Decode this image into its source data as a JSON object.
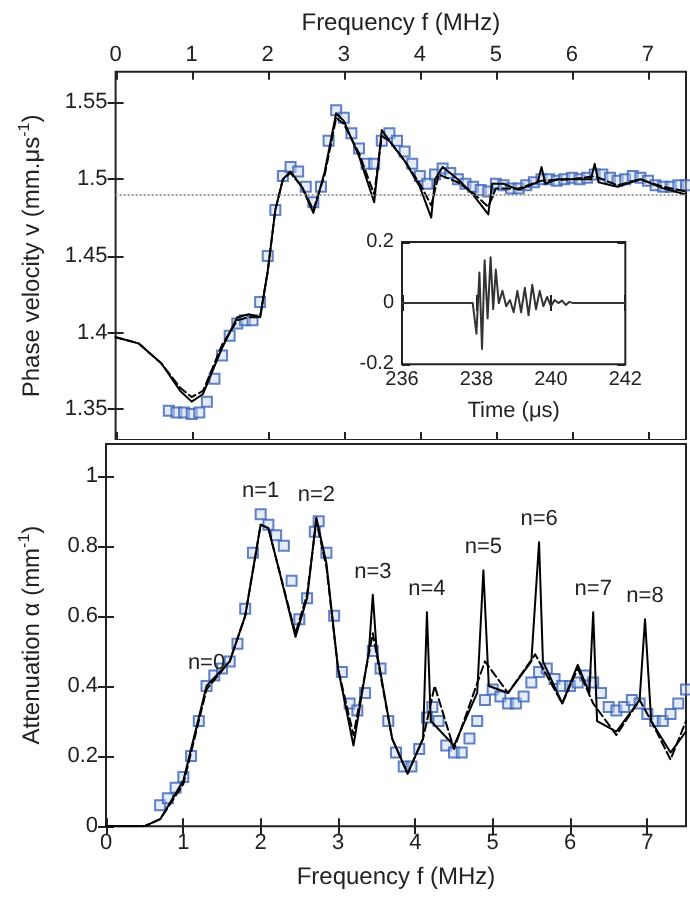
{
  "chart_data": [
    {
      "type": "line",
      "xlabel": "Frequency f (MHz)",
      "ylabel": "Phase velocity v (mm.μs$^{-1}$)",
      "xlim": [
        0,
        7.5
      ],
      "xticks": [
        0,
        1,
        2,
        3,
        4,
        5,
        6,
        7
      ],
      "ylim": [
        1.33,
        1.57
      ],
      "yticks": [
        1.35,
        1.4,
        1.45,
        1.5,
        1.55
      ],
      "grid": false,
      "ref_lines": [
        {
          "axis": "y",
          "value": 1.49,
          "color": "#999999",
          "line_style": "dotted"
        }
      ],
      "series": [
        {
          "color": "#000000",
          "line_style": "solid",
          "marker": "none",
          "x": [
            0,
            0.3,
            0.6,
            0.85,
            1.0,
            1.15,
            1.4,
            1.6,
            1.75,
            1.9,
            2.0,
            2.1,
            2.2,
            2.3,
            2.45,
            2.6,
            2.75,
            2.9,
            3.0,
            3.2,
            3.4,
            3.5,
            3.6,
            3.8,
            4.0,
            4.15,
            4.2,
            4.3,
            4.5,
            4.7,
            4.9,
            4.95,
            5.1,
            5.3,
            5.55,
            5.6,
            5.65,
            5.8,
            6.0,
            6.25,
            6.3,
            6.35,
            6.6,
            6.9,
            7.2,
            7.5
          ],
          "values": [
            1.397,
            1.393,
            1.38,
            1.362,
            1.355,
            1.36,
            1.39,
            1.41,
            1.412,
            1.41,
            1.44,
            1.48,
            1.5,
            1.505,
            1.495,
            1.478,
            1.505,
            1.543,
            1.538,
            1.515,
            1.485,
            1.532,
            1.525,
            1.512,
            1.495,
            1.475,
            1.5,
            1.508,
            1.5,
            1.49,
            1.477,
            1.497,
            1.497,
            1.493,
            1.498,
            1.508,
            1.497,
            1.5,
            1.5,
            1.5,
            1.51,
            1.498,
            1.495,
            1.5,
            1.494,
            1.49
          ]
        },
        {
          "color": "#000000",
          "line_style": "dashed",
          "marker": "none",
          "x": [
            0,
            0.3,
            0.6,
            0.85,
            1.0,
            1.15,
            1.4,
            1.6,
            1.75,
            1.9,
            2.0,
            2.1,
            2.2,
            2.3,
            2.45,
            2.6,
            2.75,
            2.9,
            3.0,
            3.2,
            3.4,
            3.5,
            3.6,
            3.8,
            4.0,
            4.15,
            4.25,
            4.5,
            4.7,
            4.9,
            5.0,
            5.3,
            5.6,
            6.0,
            6.3,
            6.6,
            6.9,
            7.2,
            7.5
          ],
          "values": [
            1.397,
            1.393,
            1.38,
            1.364,
            1.358,
            1.362,
            1.392,
            1.408,
            1.41,
            1.41,
            1.44,
            1.48,
            1.5,
            1.504,
            1.495,
            1.48,
            1.503,
            1.54,
            1.536,
            1.517,
            1.49,
            1.528,
            1.525,
            1.512,
            1.497,
            1.483,
            1.503,
            1.498,
            1.491,
            1.482,
            1.494,
            1.494,
            1.499,
            1.5,
            1.502,
            1.496,
            1.5,
            1.495,
            1.492
          ]
        },
        {
          "type": "scatter",
          "color": "#3a63b8",
          "marker": "square",
          "x": [
            0.7,
            0.8,
            0.9,
            1.0,
            1.1,
            1.2,
            1.3,
            1.4,
            1.5,
            1.6,
            1.7,
            1.8,
            1.9,
            2.0,
            2.1,
            2.2,
            2.3,
            2.4,
            2.5,
            2.6,
            2.7,
            2.8,
            2.9,
            3.0,
            3.1,
            3.2,
            3.3,
            3.4,
            3.5,
            3.6,
            3.7,
            3.8,
            3.9,
            4.0,
            4.1,
            4.2,
            4.3,
            4.4,
            4.5,
            4.6,
            4.7,
            4.8,
            4.9,
            5.0,
            5.1,
            5.2,
            5.3,
            5.4,
            5.5,
            5.6,
            5.7,
            5.8,
            5.9,
            6.0,
            6.1,
            6.2,
            6.3,
            6.4,
            6.5,
            6.6,
            6.7,
            6.8,
            6.9,
            7.0,
            7.1,
            7.2,
            7.3,
            7.4,
            7.5
          ],
          "values": [
            1.349,
            1.348,
            1.348,
            1.347,
            1.348,
            1.355,
            1.37,
            1.385,
            1.398,
            1.406,
            1.408,
            1.408,
            1.42,
            1.45,
            1.48,
            1.502,
            1.508,
            1.505,
            1.495,
            1.485,
            1.495,
            1.525,
            1.545,
            1.54,
            1.53,
            1.52,
            1.51,
            1.51,
            1.525,
            1.53,
            1.525,
            1.518,
            1.51,
            1.502,
            1.497,
            1.503,
            1.507,
            1.504,
            1.5,
            1.497,
            1.495,
            1.493,
            1.492,
            1.497,
            1.496,
            1.494,
            1.494,
            1.496,
            1.498,
            1.5,
            1.5,
            1.499,
            1.5,
            1.501,
            1.5,
            1.501,
            1.503,
            1.503,
            1.501,
            1.499,
            1.5,
            1.502,
            1.501,
            1.499,
            1.496,
            1.495,
            1.495,
            1.496,
            1.496
          ]
        }
      ]
    },
    {
      "type": "line",
      "xlabel": "Frequency f (MHz)",
      "ylabel": "Attenuation α (mm$^{-1}$)",
      "xlim": [
        0,
        7.5
      ],
      "xticks": [
        0,
        1,
        2,
        3,
        4,
        5,
        6,
        7
      ],
      "ylim": [
        0,
        1.09
      ],
      "yticks": [
        0,
        0.2,
        0.4,
        0.6,
        0.8,
        1
      ],
      "grid": false,
      "annotations": [
        {
          "text": "n=0",
          "x": 1.3,
          "y": 0.4
        },
        {
          "text": "n=1",
          "x": 2.0,
          "y": 0.89
        },
        {
          "text": "n=2",
          "x": 2.72,
          "y": 0.88
        },
        {
          "text": "n=3",
          "x": 3.45,
          "y": 0.66
        },
        {
          "text": "n=4",
          "x": 4.15,
          "y": 0.61
        },
        {
          "text": "n=5",
          "x": 4.88,
          "y": 0.73
        },
        {
          "text": "n=6",
          "x": 5.6,
          "y": 0.81
        },
        {
          "text": "n=7",
          "x": 6.3,
          "y": 0.61
        },
        {
          "text": "n=8",
          "x": 6.97,
          "y": 0.59
        }
      ],
      "series": [
        {
          "color": "#000000",
          "line_style": "solid",
          "marker": "none",
          "x": [
            0,
            0.5,
            0.7,
            1.0,
            1.3,
            1.6,
            1.8,
            2.0,
            2.1,
            2.25,
            2.45,
            2.6,
            2.72,
            2.85,
            3.0,
            3.2,
            3.4,
            3.45,
            3.5,
            3.7,
            3.9,
            4.1,
            4.15,
            4.2,
            4.5,
            4.8,
            4.88,
            4.95,
            5.2,
            5.5,
            5.6,
            5.65,
            5.9,
            6.1,
            6.25,
            6.3,
            6.35,
            6.6,
            6.9,
            6.97,
            7.05,
            7.3,
            7.5
          ],
          "values": [
            0,
            0,
            0.02,
            0.13,
            0.4,
            0.47,
            0.6,
            0.86,
            0.85,
            0.72,
            0.54,
            0.65,
            0.88,
            0.75,
            0.45,
            0.23,
            0.5,
            0.66,
            0.5,
            0.25,
            0.15,
            0.25,
            0.61,
            0.3,
            0.23,
            0.38,
            0.73,
            0.4,
            0.38,
            0.47,
            0.81,
            0.47,
            0.35,
            0.46,
            0.38,
            0.61,
            0.3,
            0.27,
            0.36,
            0.59,
            0.3,
            0.21,
            0.27
          ]
        },
        {
          "color": "#000000",
          "line_style": "dashed",
          "marker": "none",
          "x": [
            0,
            0.5,
            0.7,
            1.0,
            1.3,
            1.6,
            1.8,
            2.0,
            2.1,
            2.25,
            2.45,
            2.6,
            2.72,
            2.85,
            3.0,
            3.2,
            3.45,
            3.7,
            3.9,
            4.1,
            4.25,
            4.5,
            4.9,
            5.2,
            5.55,
            5.9,
            6.1,
            6.3,
            6.6,
            6.9,
            7.05,
            7.3,
            7.5
          ],
          "values": [
            0,
            0,
            0.02,
            0.12,
            0.39,
            0.47,
            0.6,
            0.86,
            0.85,
            0.72,
            0.55,
            0.66,
            0.87,
            0.74,
            0.45,
            0.26,
            0.55,
            0.25,
            0.15,
            0.25,
            0.4,
            0.22,
            0.47,
            0.38,
            0.49,
            0.35,
            0.45,
            0.35,
            0.26,
            0.36,
            0.3,
            0.19,
            0.3
          ]
        },
        {
          "type": "scatter",
          "color": "#3a63b8",
          "marker": "square",
          "x": [
            0.7,
            0.8,
            0.9,
            1.0,
            1.1,
            1.2,
            1.3,
            1.4,
            1.5,
            1.6,
            1.7,
            1.8,
            1.9,
            2.0,
            2.1,
            2.2,
            2.3,
            2.4,
            2.5,
            2.6,
            2.7,
            2.75,
            2.85,
            2.95,
            3.05,
            3.15,
            3.25,
            3.35,
            3.45,
            3.55,
            3.65,
            3.75,
            3.85,
            3.95,
            4.05,
            4.15,
            4.22,
            4.3,
            4.4,
            4.5,
            4.6,
            4.7,
            4.8,
            4.9,
            5.0,
            5.1,
            5.2,
            5.3,
            5.4,
            5.5,
            5.6,
            5.7,
            5.8,
            5.9,
            6.0,
            6.1,
            6.2,
            6.3,
            6.4,
            6.5,
            6.6,
            6.7,
            6.8,
            6.9,
            7.0,
            7.1,
            7.2,
            7.3,
            7.4,
            7.5
          ],
          "values": [
            0.06,
            0.08,
            0.11,
            0.14,
            0.2,
            0.3,
            0.4,
            0.43,
            0.45,
            0.47,
            0.52,
            0.62,
            0.78,
            0.89,
            0.86,
            0.83,
            0.8,
            0.7,
            0.59,
            0.65,
            0.84,
            0.87,
            0.78,
            0.6,
            0.44,
            0.35,
            0.33,
            0.38,
            0.5,
            0.45,
            0.3,
            0.21,
            0.17,
            0.17,
            0.22,
            0.31,
            0.34,
            0.3,
            0.23,
            0.21,
            0.21,
            0.25,
            0.3,
            0.36,
            0.39,
            0.37,
            0.35,
            0.35,
            0.37,
            0.41,
            0.44,
            0.45,
            0.42,
            0.4,
            0.4,
            0.41,
            0.43,
            0.41,
            0.38,
            0.34,
            0.33,
            0.34,
            0.36,
            0.35,
            0.32,
            0.3,
            0.3,
            0.32,
            0.35,
            0.39
          ]
        }
      ]
    },
    {
      "type": "line",
      "xlabel": "Time (μs)",
      "xlim": [
        236,
        242
      ],
      "xticks": [
        236,
        238,
        240,
        242
      ],
      "ylim": [
        -0.2,
        0.2
      ],
      "yticks": [
        -0.2,
        0,
        0.2
      ],
      "grid": false,
      "series": [
        {
          "color": "#333333",
          "line_style": "solid",
          "marker": "none",
          "x": [
            236,
            237.9,
            238.0,
            238.08,
            238.15,
            238.22,
            238.3,
            238.38,
            238.45,
            238.52,
            238.6,
            238.7,
            238.8,
            238.9,
            239.0,
            239.1,
            239.2,
            239.3,
            239.4,
            239.5,
            239.6,
            239.7,
            239.8,
            239.9,
            240.0,
            240.1,
            240.2,
            240.3,
            240.4,
            240.5,
            240.6,
            242
          ],
          "values": [
            0,
            0,
            -0.1,
            0.1,
            -0.15,
            0.14,
            -0.05,
            0.15,
            -0.02,
            0.11,
            0,
            0.04,
            -0.01,
            0.01,
            -0.03,
            0.04,
            -0.03,
            0.05,
            -0.04,
            0.06,
            -0.02,
            0.04,
            -0.01,
            0.02,
            -0.01,
            0.01,
            0,
            0.008,
            -0.006,
            0.004,
            0,
            0
          ]
        }
      ]
    }
  ]
}
